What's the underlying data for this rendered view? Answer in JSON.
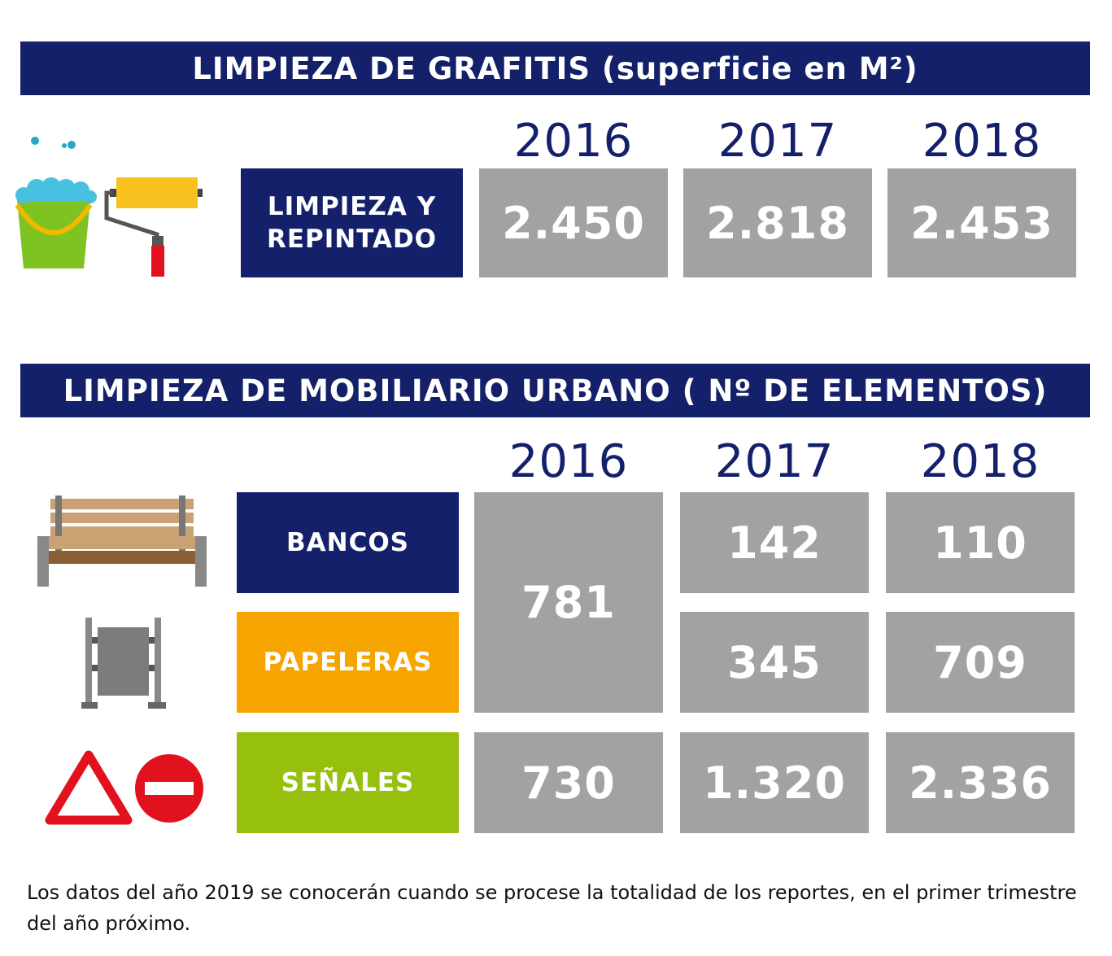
{
  "chart_data": [
    {
      "type": "table",
      "title": "LIMPIEZA DE GRAFITIS (superficie en M²)",
      "columns": [
        "2016",
        "2017",
        "2018"
      ],
      "rows": [
        {
          "label": "LIMPIEZA Y\nREPINTADO",
          "values": [
            "2.450",
            "2.818",
            "2.453"
          ]
        }
      ]
    },
    {
      "type": "table",
      "title": "LIMPIEZA DE MOBILIARIO URBANO ( Nº DE ELEMENTOS)",
      "columns": [
        "2016",
        "2017",
        "2018"
      ],
      "rows": [
        {
          "label": "BANCOS",
          "values": [
            "781",
            "142",
            "110"
          ]
        },
        {
          "label": "PAPELERAS",
          "values": [
            "781",
            "345",
            "709"
          ]
        },
        {
          "label": "SEÑALES",
          "values": [
            "730",
            "1.320",
            "2.336"
          ]
        }
      ],
      "merged_cells": "2016 value 781 covers BANCOS and PAPELERAS combined"
    }
  ],
  "colors": {
    "header_bg": "#14206a",
    "value_bg": "#a2a2a4",
    "bancos": "#14206a",
    "papeleras": "#f5a400",
    "senales": "#97bf0d"
  },
  "icons": {
    "grafitis": [
      "paint-bucket-icon",
      "paint-roller-icon"
    ],
    "bancos": "bench-icon",
    "papeleras": "trash-bin-icon",
    "senales": [
      "warning-triangle-icon",
      "no-entry-sign-icon"
    ]
  },
  "footnote": "Los datos del año 2019 se conocerán cuando se procese la totalidad de los reportes, en el primer trimestre del año próximo."
}
